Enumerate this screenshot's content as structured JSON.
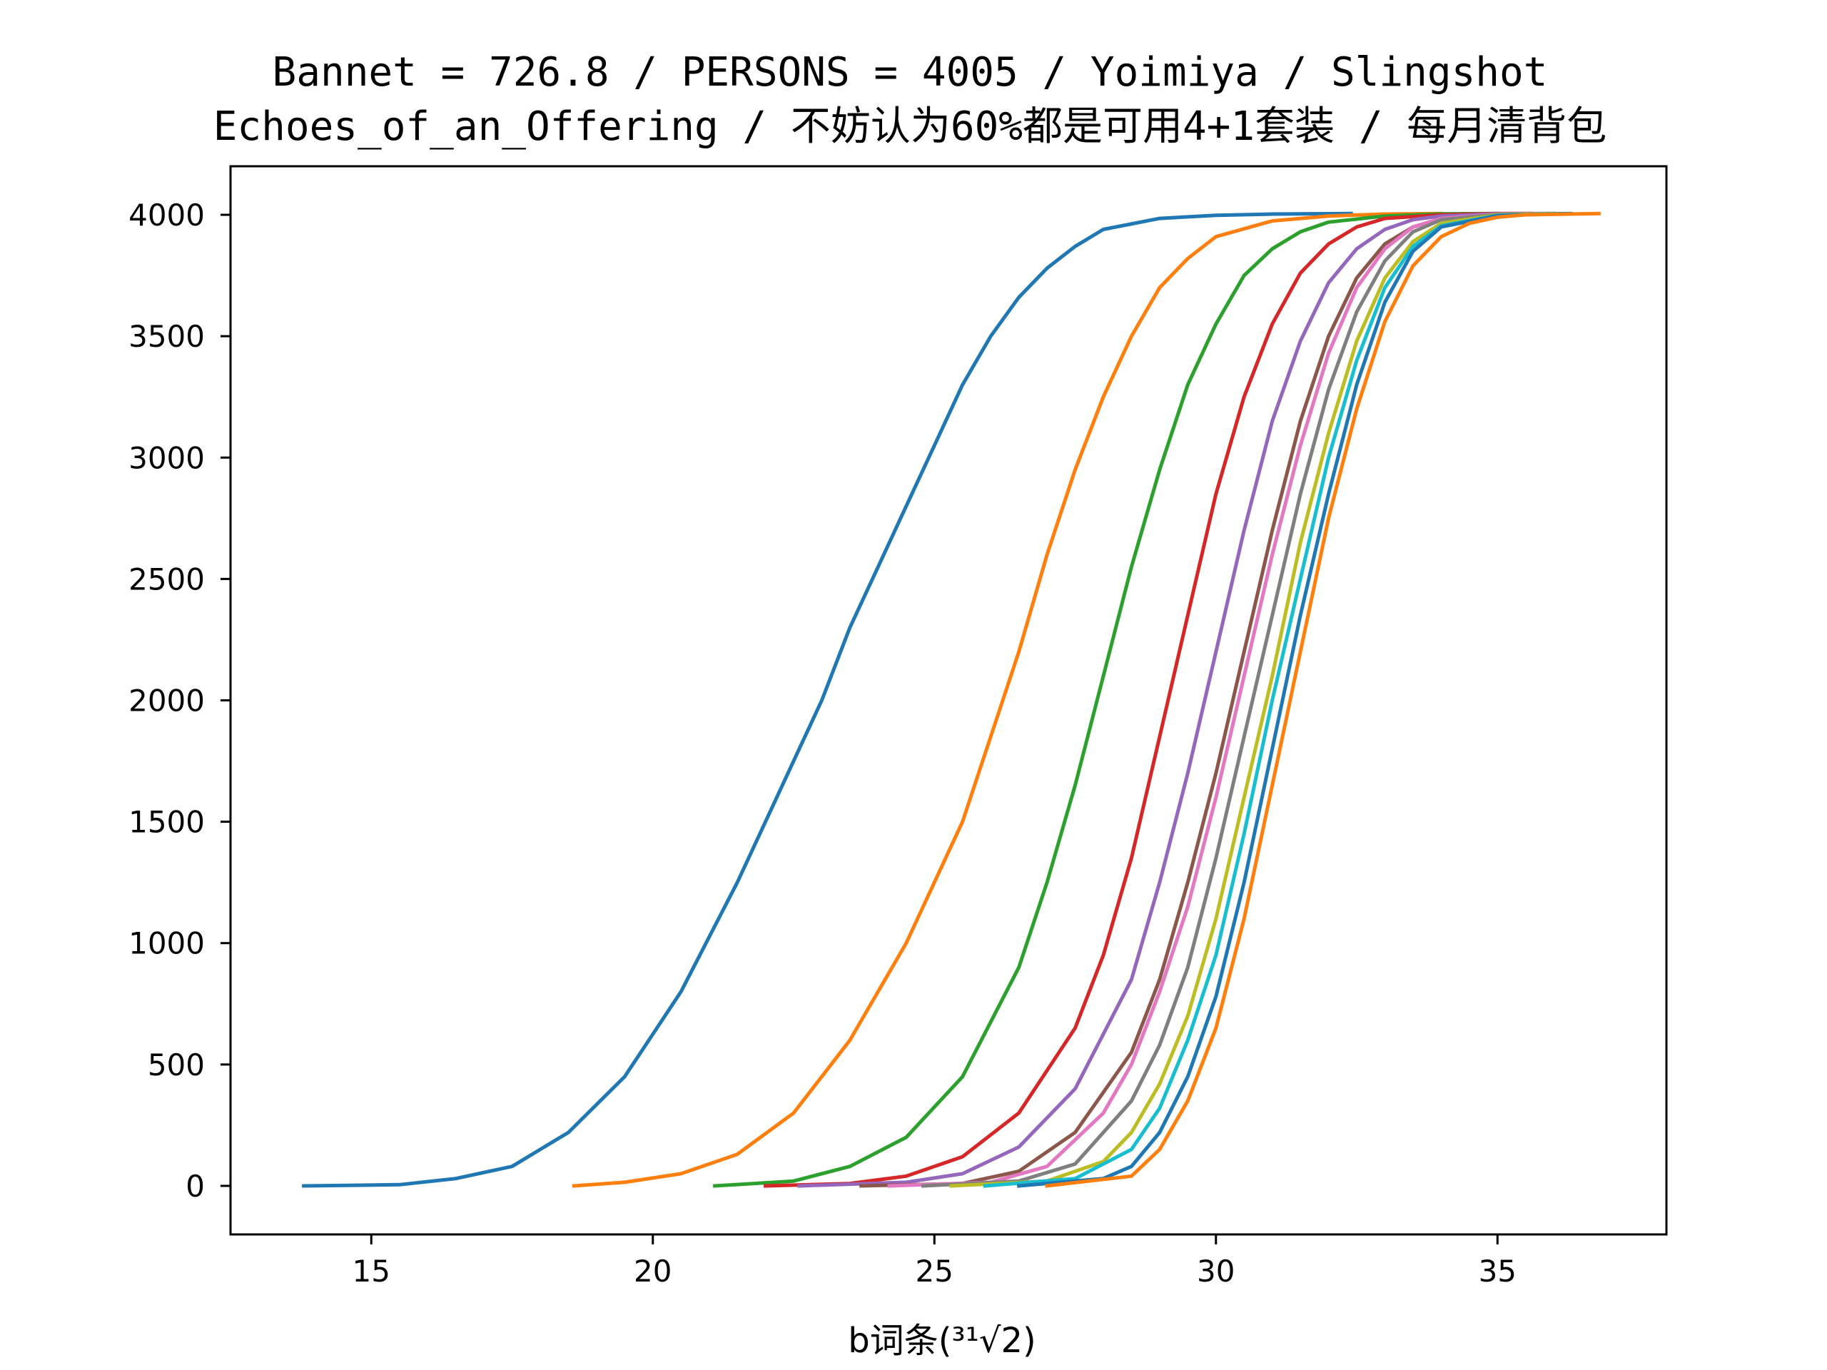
{
  "chart_data": {
    "type": "line",
    "title": "Bannet = 726.8 / PERSONS = 4005 / Yoimiya / Slingshot",
    "subtitle": "Echoes_of_an_Offering / 不妨认为60%都是可用4+1套装 / 每月清背包",
    "xlabel": "b词条(³¹√2)",
    "ylabel": "",
    "xlim": [
      12.5,
      38.0
    ],
    "ylim": [
      -200,
      4200
    ],
    "xticks": [
      15,
      20,
      25,
      30,
      35
    ],
    "yticks": [
      0,
      500,
      1000,
      1500,
      2000,
      2500,
      3000,
      3500,
      4000
    ],
    "grid": false,
    "legend": "none",
    "series": [
      {
        "color": "#1f77b4",
        "x": [
          13.8,
          15.5,
          16.5,
          17.5,
          18.5,
          19.5,
          20.5,
          21.5,
          22.0,
          22.5,
          23.0,
          23.5,
          24.0,
          24.5,
          25.0,
          25.5,
          26.0,
          26.5,
          27.0,
          27.5,
          28.0,
          29.0,
          30.0,
          31.0,
          32.4
        ],
        "y": [
          0,
          5,
          30,
          80,
          220,
          450,
          800,
          1250,
          1500,
          1750,
          2000,
          2300,
          2550,
          2800,
          3050,
          3300,
          3500,
          3660,
          3780,
          3870,
          3940,
          3985,
          3998,
          4003,
          4005
        ]
      },
      {
        "color": "#ff7f0e",
        "x": [
          18.6,
          19.5,
          20.5,
          21.5,
          22.5,
          23.5,
          24.5,
          25.5,
          26.0,
          26.5,
          27.0,
          27.5,
          28.0,
          28.5,
          29.0,
          29.5,
          30.0,
          31.0,
          32.0,
          33.0,
          34.0
        ],
        "y": [
          0,
          15,
          50,
          130,
          300,
          600,
          1000,
          1500,
          1850,
          2200,
          2600,
          2950,
          3250,
          3500,
          3700,
          3820,
          3910,
          3975,
          3995,
          4003,
          4005
        ]
      },
      {
        "color": "#2ca02c",
        "x": [
          21.1,
          22.5,
          23.5,
          24.5,
          25.5,
          26.5,
          27.0,
          27.5,
          28.0,
          28.5,
          29.0,
          29.5,
          30.0,
          30.5,
          31.0,
          31.5,
          32.0,
          33.0,
          34.0,
          35.0
        ],
        "y": [
          0,
          20,
          80,
          200,
          450,
          900,
          1250,
          1650,
          2100,
          2550,
          2950,
          3300,
          3550,
          3750,
          3860,
          3930,
          3970,
          3995,
          4004,
          4005
        ]
      },
      {
        "color": "#d62728",
        "x": [
          22.0,
          23.5,
          24.5,
          25.5,
          26.5,
          27.5,
          28.0,
          28.5,
          29.0,
          29.5,
          30.0,
          30.5,
          31.0,
          31.5,
          32.0,
          32.5,
          33.0,
          34.0,
          35.0,
          35.6
        ],
        "y": [
          0,
          10,
          40,
          120,
          300,
          650,
          950,
          1350,
          1850,
          2350,
          2850,
          3250,
          3550,
          3760,
          3880,
          3950,
          3985,
          4000,
          4005,
          4005
        ]
      },
      {
        "color": "#9467bd",
        "x": [
          22.6,
          24.5,
          25.5,
          26.5,
          27.5,
          28.5,
          29.0,
          29.5,
          30.0,
          30.5,
          31.0,
          31.5,
          32.0,
          32.5,
          33.0,
          33.5,
          34.0,
          35.0,
          35.8
        ],
        "y": [
          0,
          15,
          50,
          160,
          400,
          850,
          1250,
          1700,
          2200,
          2700,
          3150,
          3480,
          3720,
          3860,
          3940,
          3980,
          3995,
          4004,
          4005
        ]
      },
      {
        "color": "#8c564b",
        "x": [
          23.7,
          25.5,
          26.5,
          27.5,
          28.5,
          29.0,
          29.5,
          30.0,
          30.5,
          31.0,
          31.5,
          32.0,
          32.5,
          33.0,
          33.5,
          34.0,
          35.0,
          35.9
        ],
        "y": [
          0,
          10,
          60,
          220,
          550,
          850,
          1250,
          1700,
          2200,
          2700,
          3150,
          3500,
          3740,
          3880,
          3950,
          3985,
          4002,
          4005
        ]
      },
      {
        "color": "#e377c2",
        "x": [
          24.2,
          26.0,
          27.0,
          28.0,
          28.5,
          29.0,
          29.5,
          30.0,
          30.5,
          31.0,
          31.5,
          32.0,
          32.5,
          33.0,
          33.5,
          34.0,
          35.0,
          36.0
        ],
        "y": [
          0,
          15,
          80,
          300,
          500,
          800,
          1150,
          1600,
          2100,
          2600,
          3050,
          3430,
          3700,
          3860,
          3950,
          3985,
          4003,
          4005
        ]
      },
      {
        "color": "#7f7f7f",
        "x": [
          24.8,
          26.5,
          27.5,
          28.5,
          29.0,
          29.5,
          30.0,
          30.5,
          31.0,
          31.5,
          32.0,
          32.5,
          33.0,
          33.5,
          34.0,
          35.0,
          36.0
        ],
        "y": [
          0,
          20,
          90,
          350,
          580,
          900,
          1350,
          1850,
          2350,
          2850,
          3280,
          3600,
          3810,
          3930,
          3980,
          4002,
          4005
        ]
      },
      {
        "color": "#bcbd22",
        "x": [
          25.3,
          27.0,
          28.0,
          28.5,
          29.0,
          29.5,
          30.0,
          30.5,
          31.0,
          31.5,
          32.0,
          32.5,
          33.0,
          33.5,
          34.0,
          35.0,
          36.1
        ],
        "y": [
          0,
          20,
          100,
          220,
          420,
          700,
          1100,
          1600,
          2100,
          2650,
          3100,
          3480,
          3740,
          3890,
          3965,
          4000,
          4005
        ]
      },
      {
        "color": "#17becf",
        "x": [
          25.9,
          27.5,
          28.5,
          29.0,
          29.5,
          30.0,
          30.5,
          31.0,
          31.5,
          32.0,
          32.5,
          33.0,
          33.5,
          34.0,
          35.0,
          36.2
        ],
        "y": [
          0,
          30,
          150,
          320,
          600,
          950,
          1450,
          2000,
          2500,
          3000,
          3400,
          3700,
          3870,
          3955,
          3998,
          4005
        ]
      },
      {
        "color": "#1f77b4",
        "x": [
          26.5,
          28.0,
          28.5,
          29.0,
          29.5,
          30.0,
          30.5,
          31.0,
          31.5,
          32.0,
          32.5,
          33.0,
          33.5,
          34.0,
          35.0,
          36.3
        ],
        "y": [
          0,
          30,
          80,
          220,
          450,
          780,
          1250,
          1800,
          2350,
          2850,
          3300,
          3640,
          3850,
          3950,
          3997,
          4005
        ]
      },
      {
        "color": "#ff7f0e",
        "x": [
          27.0,
          28.5,
          29.0,
          29.5,
          30.0,
          30.5,
          31.0,
          31.5,
          32.0,
          32.5,
          33.0,
          33.5,
          34.0,
          34.5,
          35.0,
          35.5,
          36.8
        ],
        "y": [
          0,
          40,
          150,
          350,
          650,
          1100,
          1650,
          2200,
          2750,
          3200,
          3560,
          3790,
          3910,
          3965,
          3990,
          4000,
          4005
        ]
      }
    ]
  }
}
